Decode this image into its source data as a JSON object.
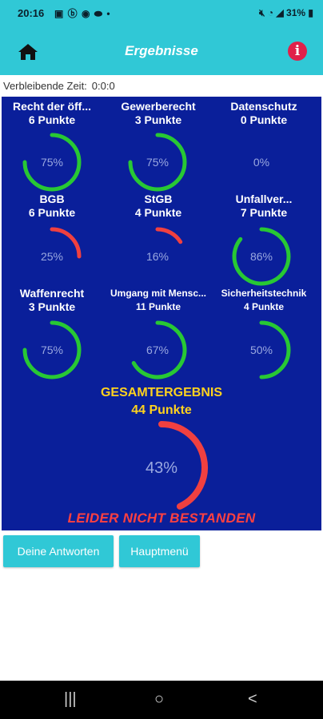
{
  "status_bar": {
    "time": "20:16",
    "notifications": "▣ ⓑ ◉ ⬬ •",
    "battery": "31%"
  },
  "app_bar": {
    "title": "Ergebnisse",
    "home_icon": "home-icon",
    "info_icon": "info-icon",
    "info_glyph": "i"
  },
  "timer": {
    "label": "Verbleibende Zeit:",
    "value": "0:0:0"
  },
  "colors": {
    "accent": "#30c8d6",
    "panel": "#0a1f9a",
    "pass": "#28c834",
    "fail": "#f04040",
    "total_text": "#ffd21e"
  },
  "categories": [
    {
      "name": "Recht der öff...",
      "points": "6 Punkte",
      "percent": 75,
      "label": "75%",
      "status": "pass"
    },
    {
      "name": "Gewerberecht",
      "points": "3 Punkte",
      "percent": 75,
      "label": "75%",
      "status": "pass"
    },
    {
      "name": "Datenschutz",
      "points": "0 Punkte",
      "percent": 0,
      "label": "0%",
      "status": "none"
    },
    {
      "name": "BGB",
      "points": "6 Punkte",
      "percent": 25,
      "label": "25%",
      "status": "fail"
    },
    {
      "name": "StGB",
      "points": "4 Punkte",
      "percent": 16,
      "label": "16%",
      "status": "fail"
    },
    {
      "name": "Unfallver...",
      "points": "7 Punkte",
      "percent": 86,
      "label": "86%",
      "status": "pass"
    },
    {
      "name": "Waffenrecht",
      "points": "3 Punkte",
      "percent": 75,
      "label": "75%",
      "status": "pass"
    },
    {
      "name": "Umgang mit Mensc...",
      "points": "11 Punkte",
      "percent": 67,
      "label": "67%",
      "status": "pass"
    },
    {
      "name": "Sicherheitstechnik",
      "points": "4 Punkte",
      "percent": 50,
      "label": "50%",
      "status": "pass"
    }
  ],
  "total": {
    "title": "GESAMTERGEBNIS",
    "points": "44 Punkte",
    "percent": 43,
    "label": "43%"
  },
  "result_text": "LEIDER  NICHT BESTANDEN",
  "buttons": {
    "answers": "Deine Antworten",
    "main_menu": "Hauptmenü"
  },
  "nav": {
    "recent": "|||",
    "home": "○",
    "back": "<"
  }
}
